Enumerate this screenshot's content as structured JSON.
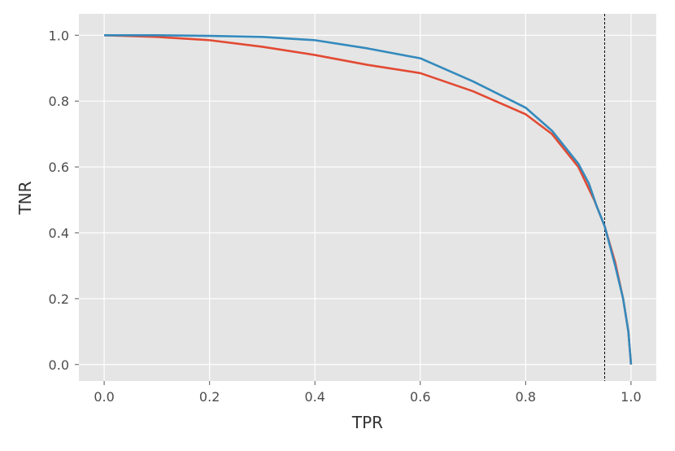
{
  "chart_data": {
    "type": "line",
    "title": "",
    "xlabel": "TPR",
    "ylabel": "TNR",
    "xlim": [
      -0.048,
      1.048
    ],
    "ylim": [
      -0.05,
      1.065
    ],
    "xticks": [
      0.0,
      0.2,
      0.4,
      0.6,
      0.8,
      1.0
    ],
    "yticks": [
      0.0,
      0.2,
      0.4,
      0.6,
      0.8,
      1.0
    ],
    "xtick_labels": [
      "0.0",
      "0.2",
      "0.4",
      "0.6",
      "0.8",
      "1.0"
    ],
    "ytick_labels": [
      "0.0",
      "0.2",
      "0.4",
      "0.6",
      "0.8",
      "1.0"
    ],
    "grid": true,
    "background": "#e5e5e5",
    "grid_color": "#ffffff",
    "reference_line": {
      "x": 0.95,
      "style": "dashed",
      "color": "#000000"
    },
    "series": [
      {
        "color": "#e24a33",
        "points": [
          [
            0.0,
            1.0
          ],
          [
            0.1,
            0.995
          ],
          [
            0.2,
            0.985
          ],
          [
            0.3,
            0.965
          ],
          [
            0.4,
            0.94
          ],
          [
            0.5,
            0.91
          ],
          [
            0.6,
            0.885
          ],
          [
            0.7,
            0.83
          ],
          [
            0.8,
            0.76
          ],
          [
            0.85,
            0.7
          ],
          [
            0.9,
            0.6
          ],
          [
            0.93,
            0.5
          ],
          [
            0.95,
            0.42
          ],
          [
            0.97,
            0.31
          ],
          [
            0.985,
            0.2
          ],
          [
            0.995,
            0.1
          ],
          [
            1.0,
            0.0
          ]
        ]
      },
      {
        "color": "#348abd",
        "points": [
          [
            0.0,
            1.0
          ],
          [
            0.1,
            1.0
          ],
          [
            0.2,
            0.998
          ],
          [
            0.3,
            0.995
          ],
          [
            0.4,
            0.985
          ],
          [
            0.5,
            0.96
          ],
          [
            0.6,
            0.93
          ],
          [
            0.7,
            0.86
          ],
          [
            0.8,
            0.78
          ],
          [
            0.85,
            0.71
          ],
          [
            0.9,
            0.61
          ],
          [
            0.92,
            0.55
          ],
          [
            0.935,
            0.48
          ],
          [
            0.95,
            0.42
          ],
          [
            0.97,
            0.3
          ],
          [
            0.985,
            0.2
          ],
          [
            0.995,
            0.1
          ],
          [
            1.0,
            0.0
          ]
        ]
      }
    ]
  }
}
